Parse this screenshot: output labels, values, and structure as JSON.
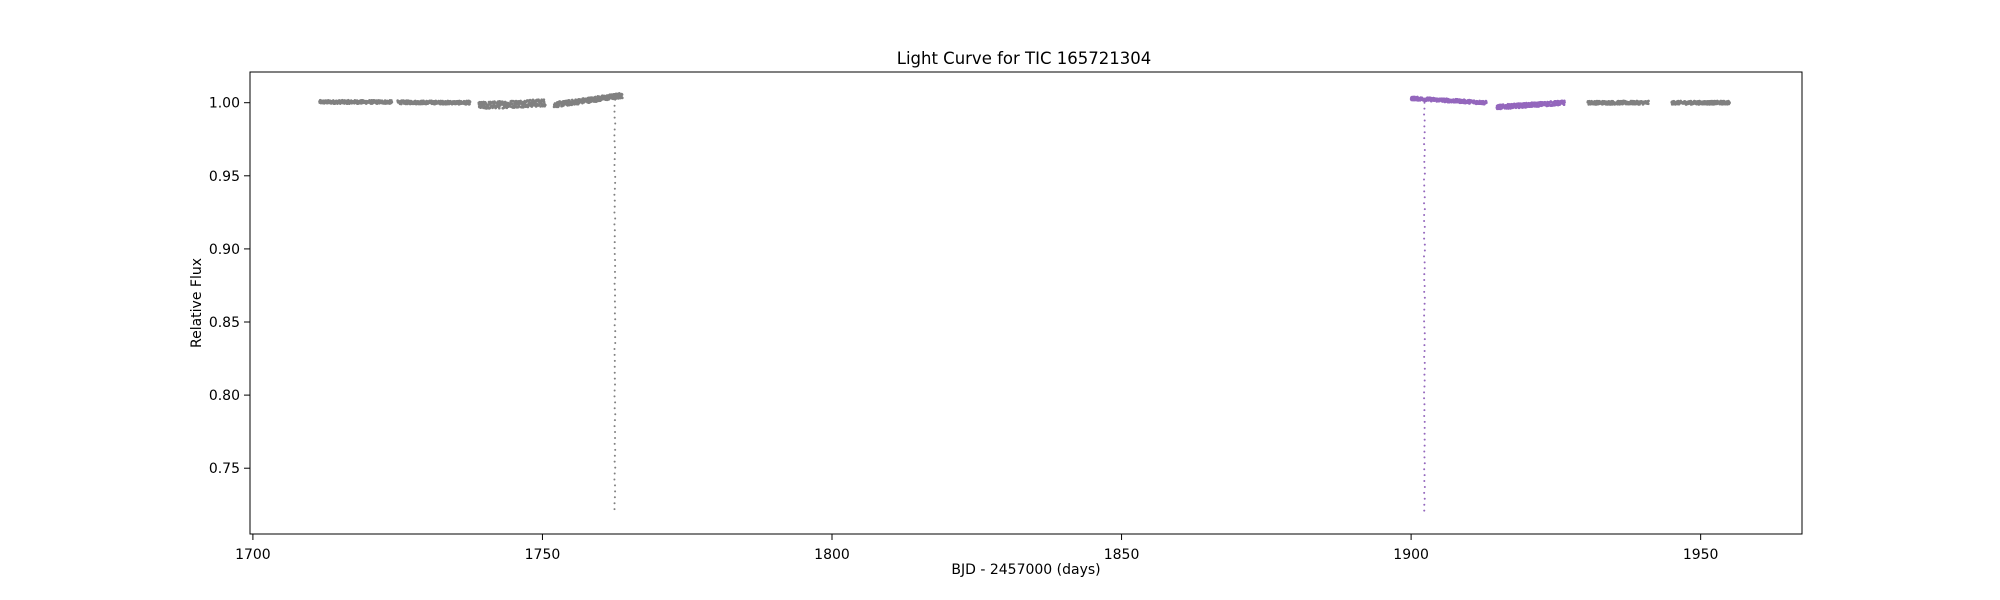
{
  "chart_data": {
    "type": "scatter",
    "title": "Light Curve for TIC 165721304",
    "xlabel": "BJD - 2457000 (days)",
    "ylabel": "Relative Flux",
    "xlim": [
      1699.5,
      1967.5
    ],
    "ylim": [
      0.705,
      1.021
    ],
    "x_ticks": [
      1700,
      1750,
      1800,
      1850,
      1900,
      1950
    ],
    "y_ticks": [
      0.75,
      0.8,
      0.85,
      0.9,
      0.95,
      1.0
    ],
    "x_tick_labels": [
      "1700",
      "1750",
      "1800",
      "1850",
      "1900",
      "1950"
    ],
    "y_tick_labels": [
      "0.75",
      "0.80",
      "0.85",
      "0.90",
      "0.95",
      "1.00"
    ],
    "grid": false,
    "legend": "none",
    "colors": {
      "other": "#808080",
      "highlight": "#9467bd"
    },
    "series": [
      {
        "color": "other",
        "segments": [
          {
            "x_start": 1711.5,
            "x_end": 1724.0,
            "y_start": 1.0005,
            "y_end": 1.0005,
            "scatter": 0.0012
          },
          {
            "x_start": 1725.0,
            "x_end": 1737.5,
            "y_start": 1.0003,
            "y_end": 1.0,
            "scatter": 0.0012
          },
          {
            "x_start": 1739.0,
            "x_end": 1750.5,
            "y_start": 0.998,
            "y_end": 1.0,
            "scatter": 0.0025
          },
          {
            "x_start": 1752.0,
            "x_end": 1763.8,
            "y_start": 0.9985,
            "y_end": 1.005,
            "scatter": 0.0018
          },
          {
            "x_start": 1930.5,
            "x_end": 1941.0,
            "y_start": 1.0,
            "y_end": 1.0,
            "scatter": 0.0012
          },
          {
            "x_start": 1945.0,
            "x_end": 1955.0,
            "y_start": 1.0,
            "y_end": 1.0,
            "scatter": 0.0012
          }
        ],
        "dips": [
          {
            "x": 1762.5,
            "y_min": 0.722,
            "y_top": 1.002
          }
        ]
      },
      {
        "color": "highlight",
        "segments": [
          {
            "x_start": 1900.0,
            "x_end": 1913.0,
            "y_start": 1.003,
            "y_end": 1.0,
            "scatter": 0.0012
          },
          {
            "x_start": 1914.8,
            "x_end": 1926.5,
            "y_start": 0.997,
            "y_end": 1.0,
            "scatter": 0.0015
          }
        ],
        "dips": [
          {
            "x": 1902.3,
            "y_min": 0.721,
            "y_top": 1.0
          }
        ]
      }
    ]
  }
}
